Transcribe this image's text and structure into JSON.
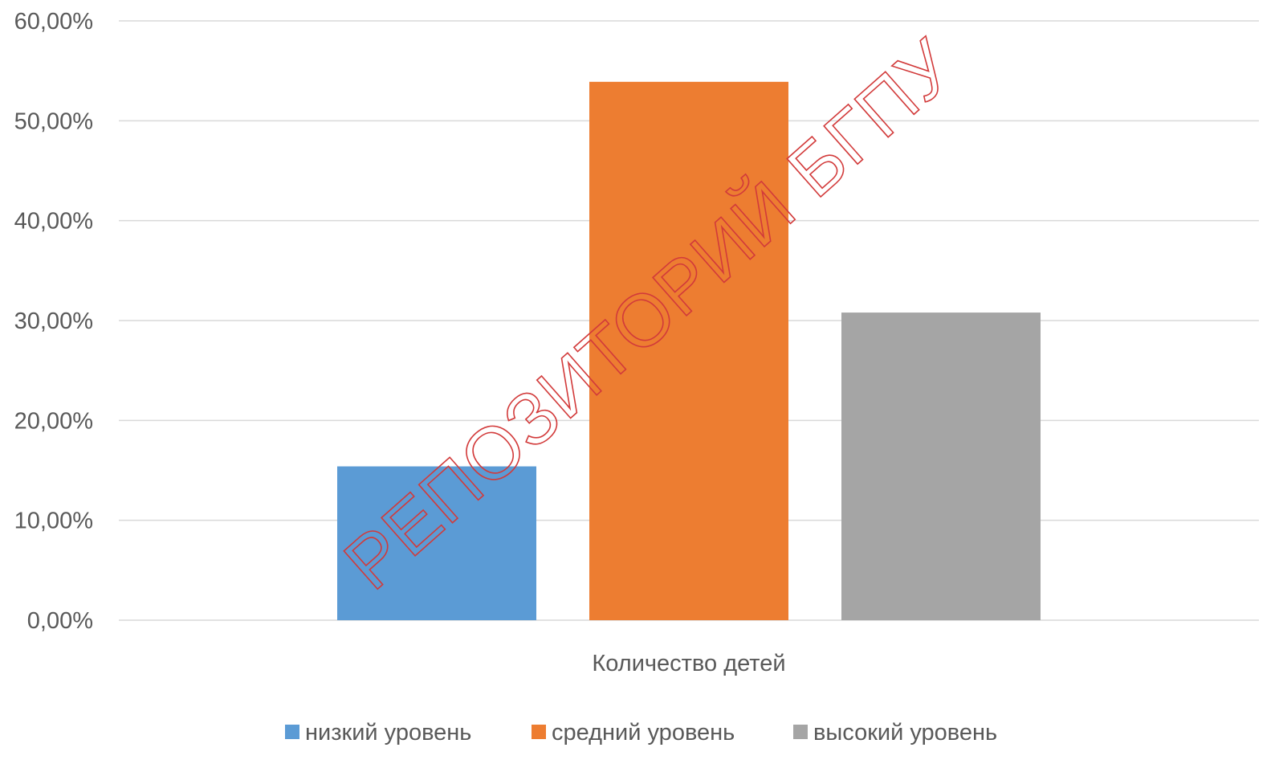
{
  "chart_data": {
    "type": "bar",
    "categories": [
      "Количество детей"
    ],
    "series": [
      {
        "name": "низкий уровень",
        "values": [
          15.4
        ],
        "color": "#5b9bd5"
      },
      {
        "name": "средний уровень",
        "values": [
          53.9
        ],
        "color": "#ed7d31"
      },
      {
        "name": "высокий уровень",
        "values": [
          30.8
        ],
        "color": "#a5a5a5"
      }
    ],
    "ylim": [
      0,
      60
    ],
    "yticks": [
      0,
      10,
      20,
      30,
      40,
      50,
      60
    ],
    "ytick_labels": [
      "0,00%",
      "10,00%",
      "20,00%",
      "30,00%",
      "40,00%",
      "50,00%",
      "60,00%"
    ],
    "grid": true,
    "legend_position": "bottom",
    "gridline_color": "#d9d9d9",
    "title": "",
    "xlabel": "",
    "ylabel": ""
  },
  "watermark": {
    "text": "РЕПОЗИТОРИЙ БГПУ",
    "color": "#d23a3a"
  }
}
